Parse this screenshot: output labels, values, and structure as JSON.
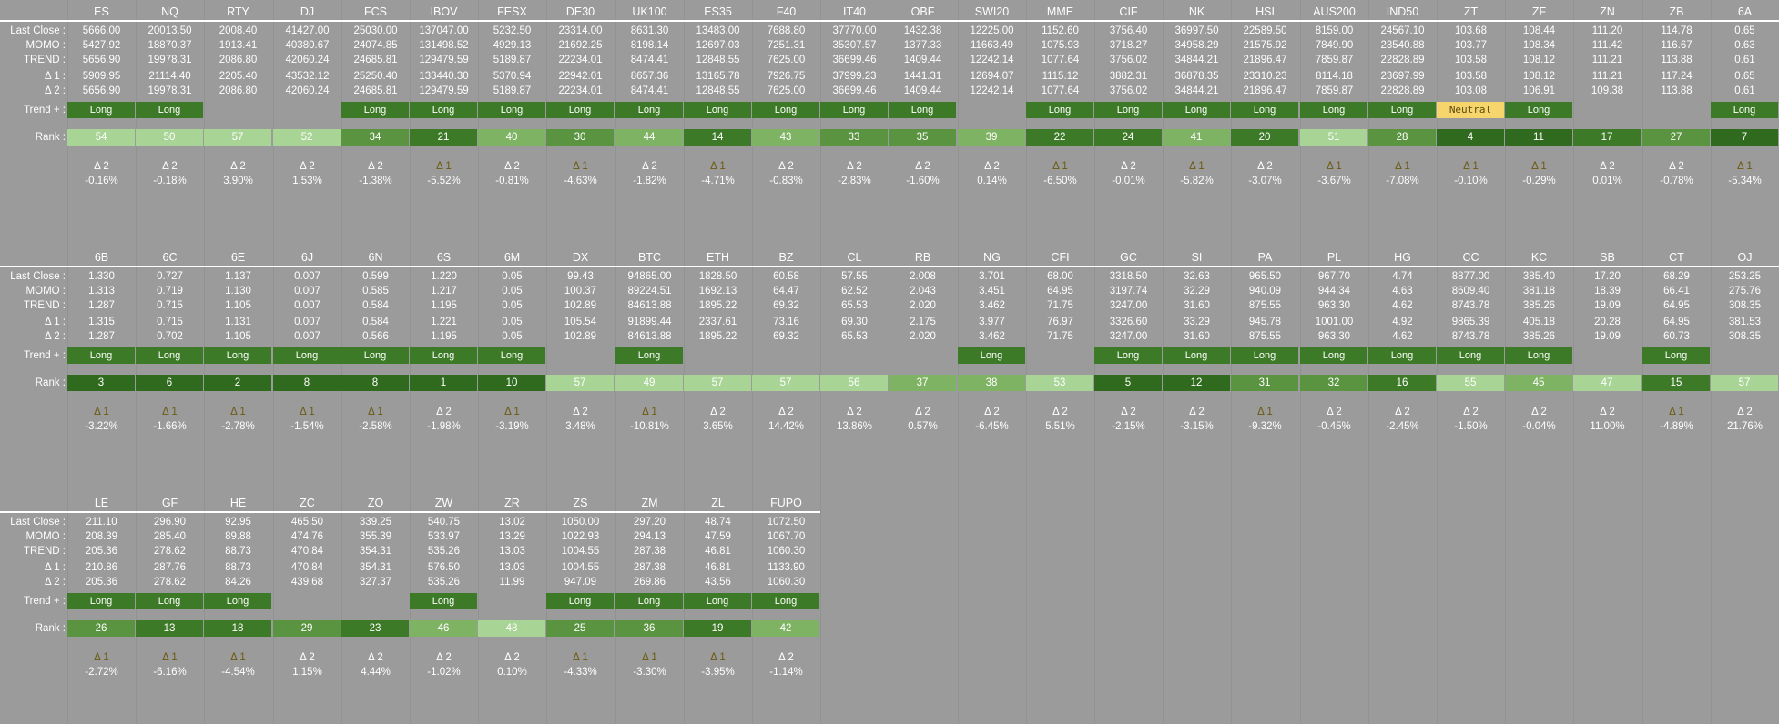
{
  "row_labels": {
    "last_close": "Last Close :",
    "momo": "MOMO :",
    "trend": "TREND :",
    "d1": "Δ 1 :",
    "d2": "Δ 2 :",
    "trend_plus": "Trend + :",
    "rank": "Rank :"
  },
  "colors": {
    "long": "#3d7a28",
    "neutral": "#f7d56d",
    "rank_scale": [
      "#2f6a1e",
      "#3d7a28",
      "#5a9440",
      "#7fb364",
      "#a8d495"
    ]
  },
  "blocks": [
    {
      "symbols": [
        "ES",
        "NQ",
        "RTY",
        "DJ",
        "FCS",
        "IBOV",
        "FESX",
        "DE30",
        "UK100",
        "ES35",
        "F40",
        "IT40",
        "OBF",
        "SWI20",
        "MME",
        "CIF",
        "NK",
        "HSI",
        "AUS200",
        "IND50",
        "ZT",
        "ZF",
        "ZN",
        "ZB",
        "6A"
      ],
      "last_close": [
        "5666.00",
        "20013.50",
        "2008.40",
        "41427.00",
        "25030.00",
        "137047.00",
        "5232.50",
        "23314.00",
        "8631.30",
        "13483.00",
        "7688.80",
        "37770.00",
        "1432.38",
        "12225.00",
        "1152.60",
        "3756.40",
        "36997.50",
        "22589.50",
        "8159.00",
        "24567.10",
        "103.68",
        "108.44",
        "111.20",
        "114.78",
        "0.65"
      ],
      "momo": [
        "5427.92",
        "18870.37",
        "1913.41",
        "40380.67",
        "24074.85",
        "131498.52",
        "4929.13",
        "21692.25",
        "8198.14",
        "12697.03",
        "7251.31",
        "35307.57",
        "1377.33",
        "11663.49",
        "1075.93",
        "3718.27",
        "34958.29",
        "21575.92",
        "7849.90",
        "23540.88",
        "103.77",
        "108.34",
        "111.42",
        "116.67",
        "0.63"
      ],
      "trend": [
        "5656.90",
        "19978.31",
        "2086.80",
        "42060.24",
        "24685.81",
        "129479.59",
        "5189.87",
        "22234.01",
        "8474.41",
        "12848.55",
        "7625.00",
        "36699.46",
        "1409.44",
        "12242.14",
        "1077.64",
        "3756.02",
        "34844.21",
        "21896.47",
        "7859.87",
        "22828.89",
        "103.58",
        "108.12",
        "111.21",
        "113.88",
        "0.61"
      ],
      "d1": [
        "5909.95",
        "21114.40",
        "2205.40",
        "43532.12",
        "25250.40",
        "133440.30",
        "5370.94",
        "22942.01",
        "8657.36",
        "13165.78",
        "7926.75",
        "37999.23",
        "1441.31",
        "12694.07",
        "1115.12",
        "3882.31",
        "36878.35",
        "23310.23",
        "8114.18",
        "23697.99",
        "103.58",
        "108.12",
        "111.21",
        "117.24",
        "0.65"
      ],
      "d2": [
        "5656.90",
        "19978.31",
        "2086.80",
        "42060.24",
        "24685.81",
        "129479.59",
        "5189.87",
        "22234.01",
        "8474.41",
        "12848.55",
        "7625.00",
        "36699.46",
        "1409.44",
        "12242.14",
        "1077.64",
        "3756.02",
        "34844.21",
        "21896.47",
        "7859.87",
        "22828.89",
        "103.08",
        "106.91",
        "109.38",
        "113.88",
        "0.61"
      ],
      "trend_plus": [
        "Long",
        "Long",
        "",
        "",
        "Long",
        "Long",
        "Long",
        "Long",
        "Long",
        "Long",
        "Long",
        "Long",
        "Long",
        "",
        "Long",
        "Long",
        "Long",
        "Long",
        "Long",
        "Long",
        "Neutral",
        "Long",
        "",
        "",
        "Long"
      ],
      "rank": [
        54,
        50,
        57,
        52,
        34,
        21,
        40,
        30,
        44,
        14,
        43,
        33,
        35,
        39,
        22,
        24,
        41,
        20,
        51,
        28,
        4,
        11,
        17,
        27,
        7
      ],
      "delta_label": [
        "Δ 2",
        "Δ 2",
        "Δ 2",
        "Δ 2",
        "Δ 2",
        "Δ 1",
        "Δ 2",
        "Δ 1",
        "Δ 2",
        "Δ 1",
        "Δ 2",
        "Δ 2",
        "Δ 2",
        "Δ 2",
        "Δ 1",
        "Δ 2",
        "Δ 1",
        "Δ 2",
        "Δ 1",
        "Δ 1",
        "Δ 1",
        "Δ 1",
        "Δ 2",
        "Δ 2",
        "Δ 1"
      ],
      "delta_pct": [
        "-0.16%",
        "-0.18%",
        "3.90%",
        "1.53%",
        "-1.38%",
        "-5.52%",
        "-0.81%",
        "-4.63%",
        "-1.82%",
        "-4.71%",
        "-0.83%",
        "-2.83%",
        "-1.60%",
        "0.14%",
        "-6.50%",
        "-0.01%",
        "-5.82%",
        "-3.07%",
        "-3.67%",
        "-7.08%",
        "-0.10%",
        "-0.29%",
        "0.01%",
        "-0.78%",
        "-5.34%"
      ]
    },
    {
      "symbols": [
        "6B",
        "6C",
        "6E",
        "6J",
        "6N",
        "6S",
        "6M",
        "DX",
        "BTC",
        "ETH",
        "BZ",
        "CL",
        "RB",
        "NG",
        "CFI",
        "GC",
        "SI",
        "PA",
        "PL",
        "HG",
        "CC",
        "KC",
        "SB",
        "CT",
        "OJ"
      ],
      "last_close": [
        "1.330",
        "0.727",
        "1.137",
        "0.007",
        "0.599",
        "1.220",
        "0.05",
        "99.43",
        "94865.00",
        "1828.50",
        "60.58",
        "57.55",
        "2.008",
        "3.701",
        "68.00",
        "3318.50",
        "32.63",
        "965.50",
        "967.70",
        "4.74",
        "8877.00",
        "385.40",
        "17.20",
        "68.29",
        "253.25"
      ],
      "momo": [
        "1.313",
        "0.719",
        "1.130",
        "0.007",
        "0.585",
        "1.217",
        "0.05",
        "100.37",
        "89224.51",
        "1692.13",
        "64.47",
        "62.52",
        "2.043",
        "3.451",
        "64.95",
        "3197.74",
        "32.29",
        "940.09",
        "944.34",
        "4.63",
        "8609.40",
        "381.18",
        "18.39",
        "66.41",
        "275.76"
      ],
      "trend": [
        "1.287",
        "0.715",
        "1.105",
        "0.007",
        "0.584",
        "1.195",
        "0.05",
        "102.89",
        "84613.88",
        "1895.22",
        "69.32",
        "65.53",
        "2.020",
        "3.462",
        "71.75",
        "3247.00",
        "31.60",
        "875.55",
        "963.30",
        "4.62",
        "8743.78",
        "385.26",
        "19.09",
        "64.95",
        "308.35"
      ],
      "d1": [
        "1.315",
        "0.715",
        "1.131",
        "0.007",
        "0.584",
        "1.221",
        "0.05",
        "105.54",
        "91899.44",
        "2337.61",
        "73.16",
        "69.30",
        "2.175",
        "3.977",
        "76.97",
        "3326.60",
        "33.29",
        "945.78",
        "1001.00",
        "4.92",
        "9865.39",
        "405.18",
        "20.28",
        "64.95",
        "381.53"
      ],
      "d2": [
        "1.287",
        "0.702",
        "1.105",
        "0.007",
        "0.566",
        "1.195",
        "0.05",
        "102.89",
        "84613.88",
        "1895.22",
        "69.32",
        "65.53",
        "2.020",
        "3.462",
        "71.75",
        "3247.00",
        "31.60",
        "875.55",
        "963.30",
        "4.62",
        "8743.78",
        "385.26",
        "19.09",
        "60.73",
        "308.35"
      ],
      "trend_plus": [
        "Long",
        "Long",
        "Long",
        "Long",
        "Long",
        "Long",
        "Long",
        "",
        "Long",
        "",
        "",
        "",
        "",
        "Long",
        "",
        "Long",
        "Long",
        "Long",
        "Long",
        "Long",
        "Long",
        "Long",
        "",
        "Long",
        ""
      ],
      "rank": [
        3,
        6,
        2,
        8,
        8,
        1,
        10,
        57,
        49,
        57,
        57,
        56,
        37,
        38,
        53,
        5,
        12,
        31,
        32,
        16,
        55,
        45,
        47,
        15,
        57
      ],
      "delta_label": [
        "Δ 1",
        "Δ 1",
        "Δ 1",
        "Δ 1",
        "Δ 1",
        "Δ 2",
        "Δ 1",
        "Δ 2",
        "Δ 1",
        "Δ 2",
        "Δ 2",
        "Δ 2",
        "Δ 2",
        "Δ 2",
        "Δ 2",
        "Δ 2",
        "Δ 2",
        "Δ 1",
        "Δ 2",
        "Δ 2",
        "Δ 2",
        "Δ 2",
        "Δ 2",
        "Δ 1",
        "Δ 2"
      ],
      "delta_pct": [
        "-3.22%",
        "-1.66%",
        "-2.78%",
        "-1.54%",
        "-2.58%",
        "-1.98%",
        "-3.19%",
        "3.48%",
        "-10.81%",
        "3.65%",
        "14.42%",
        "13.86%",
        "0.57%",
        "-6.45%",
        "5.51%",
        "-2.15%",
        "-3.15%",
        "-9.32%",
        "-0.45%",
        "-2.45%",
        "-1.50%",
        "-0.04%",
        "11.00%",
        "-4.89%",
        "21.76%"
      ]
    },
    {
      "symbols": [
        "LE",
        "GF",
        "HE",
        "ZC",
        "ZO",
        "ZW",
        "ZR",
        "ZS",
        "ZM",
        "ZL",
        "FUPO"
      ],
      "last_close": [
        "211.10",
        "296.90",
        "92.95",
        "465.50",
        "339.25",
        "540.75",
        "13.02",
        "1050.00",
        "297.20",
        "48.74",
        "1072.50"
      ],
      "momo": [
        "208.39",
        "285.40",
        "89.88",
        "474.76",
        "355.39",
        "533.97",
        "13.29",
        "1022.93",
        "294.13",
        "47.59",
        "1067.70"
      ],
      "trend": [
        "205.36",
        "278.62",
        "88.73",
        "470.84",
        "354.31",
        "535.26",
        "13.03",
        "1004.55",
        "287.38",
        "46.81",
        "1060.30"
      ],
      "d1": [
        "210.86",
        "287.76",
        "88.73",
        "470.84",
        "354.31",
        "576.50",
        "13.03",
        "1004.55",
        "287.38",
        "46.81",
        "1133.90"
      ],
      "d2": [
        "205.36",
        "278.62",
        "84.26",
        "439.68",
        "327.37",
        "535.26",
        "11.99",
        "947.09",
        "269.86",
        "43.56",
        "1060.30"
      ],
      "trend_plus": [
        "Long",
        "Long",
        "Long",
        "",
        "",
        "Long",
        "",
        "Long",
        "Long",
        "Long",
        "Long"
      ],
      "rank": [
        26,
        13,
        18,
        29,
        23,
        46,
        48,
        25,
        36,
        19,
        42
      ],
      "delta_label": [
        "Δ 1",
        "Δ 1",
        "Δ 1",
        "Δ 2",
        "Δ 2",
        "Δ 2",
        "Δ 2",
        "Δ 1",
        "Δ 1",
        "Δ 1",
        "Δ 2"
      ],
      "delta_pct": [
        "-2.72%",
        "-6.16%",
        "-4.54%",
        "1.15%",
        "4.44%",
        "-1.02%",
        "0.10%",
        "-4.33%",
        "-3.30%",
        "-3.95%",
        "-1.14%"
      ]
    }
  ]
}
